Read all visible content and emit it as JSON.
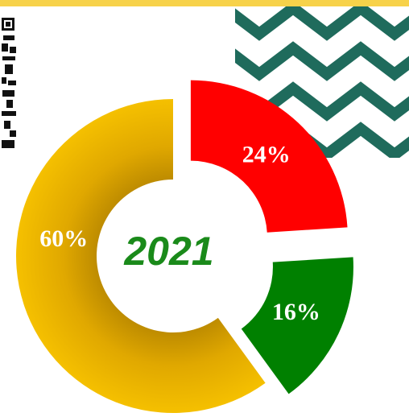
{
  "chart_data": {
    "type": "donut",
    "title": "2021",
    "values": [
      24,
      16,
      60
    ],
    "value_labels": [
      "24%",
      "16%",
      "60%"
    ],
    "colors": [
      "#ff0000",
      "#008000",
      "#f2b800"
    ],
    "exploded": [
      true,
      true,
      false
    ],
    "title_color": "#1a8a1a"
  }
}
